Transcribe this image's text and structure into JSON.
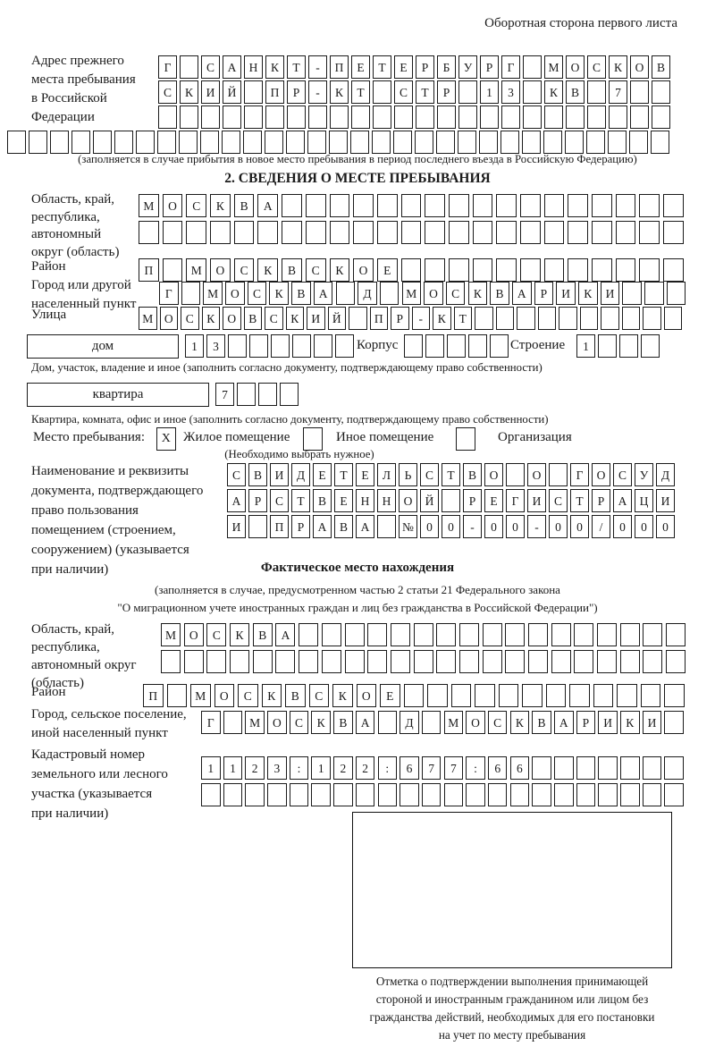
{
  "header": {
    "note": "Оборотная сторона первого листа"
  },
  "colors": {
    "ink": "#1b1b1b",
    "paper": "#ffffff"
  },
  "prev_address": {
    "label_lines": [
      "Адрес прежнего",
      "места пребывания",
      "в Российской",
      "Федерации"
    ],
    "rows": [
      "Г САНКТ-ПЕТЕРБУРГ МОСКОВ",
      "СКИЙ ПР-КТ СТР 13 КВ 7  ",
      "                        ",
      "                               "
    ],
    "note": "(заполняется в случае прибытия в новое место пребывания в период последнего въезда в Российскую Федерацию)"
  },
  "section2": {
    "title": "2. СВЕДЕНИЯ О МЕСТЕ ПРЕБЫВАНИЯ",
    "region": {
      "label_lines": [
        "Область, край,",
        "республика,",
        "автономный",
        "округ (область)"
      ],
      "rows": [
        "МОСКВА                 ",
        "                       "
      ]
    },
    "district": {
      "label": "Район",
      "row": "П МОСКВСКОЕ            "
    },
    "city": {
      "label_lines": [
        "Город или другой",
        "населенный пункт"
      ],
      "row": "Г МОСКВА Д МОСКВАРИКИ   "
    },
    "street": {
      "label": "Улица",
      "row": "МОСКОВСКИЙ ПР-КТ          "
    },
    "house": {
      "box_label": "дом",
      "cells": "13      ",
      "korpus_label": "Корпус",
      "korpus_cells": "     ",
      "stroenie_label": "Строение",
      "stroenie_cells": "1   ",
      "note": "Дом, участок, владение и иное (заполнить согласно документу, подтверждающему право собственности)"
    },
    "apartment": {
      "box_label": "квартира",
      "cells": "7   ",
      "note": "Квартира, комната, офис и иное (заполнить согласно документу, подтверждающему право собственности)"
    },
    "stay_type": {
      "label": "Место пребывания:",
      "checked_mark": "X",
      "option1": "Жилое помещение",
      "option2": "Иное помещение",
      "option3": "Организация",
      "note": "(Необходимо выбрать нужное)"
    },
    "document": {
      "label_lines": [
        "Наименование и реквизиты",
        "документа, подтверждающего",
        "право пользования",
        "помещением (строением,",
        "сооружением) (указывается",
        "при наличии)"
      ],
      "rows": [
        "СВИДЕТЕЛЬСТВО О ГОСУД",
        "АРСТВЕННОЙ РЕГИСТРАЦИ",
        "И ПРАВА №00-00-00/000"
      ]
    }
  },
  "actual_location": {
    "title": "Фактическое место нахождения",
    "note_lines": [
      "(заполняется в случае, предусмотренном частью 2 статьи 21 Федерального закона",
      "\"О миграционном учете иностранных граждан и лиц без гражданства в Российской Федерации\")"
    ],
    "region": {
      "label_lines": [
        "Область, край,",
        "республика,",
        "автономный округ",
        "(область)"
      ],
      "rows": [
        "МОСКВА                 ",
        "                       "
      ]
    },
    "district": {
      "label": "Район",
      "row": "П МОСКВСКОЕ            "
    },
    "city": {
      "label_lines": [
        "Город, сельское поселение,",
        "иной населенный пункт"
      ],
      "row": "Г МОСКВА Д МОСКВАРИКИ "
    },
    "cadastre": {
      "label_lines": [
        "Кадастровый номер",
        "земельного или лесного",
        "участка (указывается",
        "при наличии)"
      ],
      "rows": [
        "1123:122:677:66       ",
        "                      "
      ]
    },
    "stamp_note_lines": [
      "Отметка о подтверждении выполнения принимающей",
      "стороной и иностранным гражданином или лицом без",
      "гражданства действий, необходимых для его постановки",
      "на учет по месту пребывания"
    ]
  }
}
